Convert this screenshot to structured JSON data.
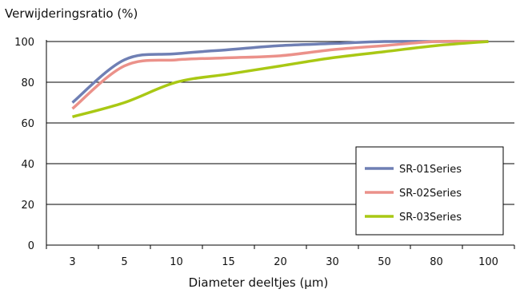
{
  "chart_data": {
    "type": "line",
    "ylabel": "Verwijderingsratio (%)",
    "xlabel": "Diameter deeltjes (μm)",
    "categories": [
      "3",
      "5",
      "10",
      "15",
      "20",
      "30",
      "50",
      "80",
      "100"
    ],
    "ylim": [
      0,
      100
    ],
    "yticks": [
      0,
      20,
      40,
      60,
      80,
      100
    ],
    "grid": "horizontal",
    "legend": "bottom-right",
    "series": [
      {
        "name": "SR-01Series",
        "color": "#6f7fb4",
        "values": [
          70,
          91,
          94,
          96,
          98,
          99,
          100,
          100,
          100
        ]
      },
      {
        "name": "SR-02Series",
        "color": "#eb918a",
        "values": [
          67,
          88,
          91,
          92,
          93,
          96,
          98,
          100,
          100
        ]
      },
      {
        "name": "SR-03Series",
        "color": "#a9c814",
        "values": [
          63,
          70,
          80,
          84,
          88,
          92,
          95,
          98,
          100
        ]
      }
    ]
  }
}
